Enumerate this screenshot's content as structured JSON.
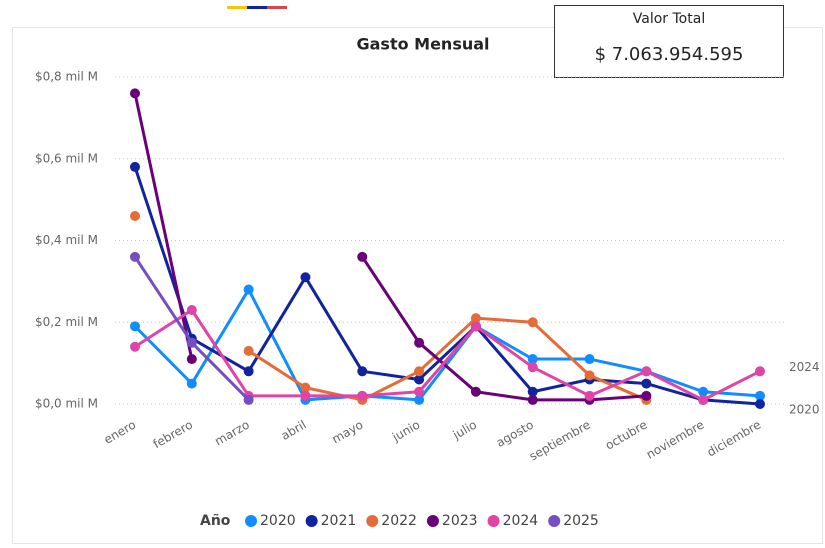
{
  "chart_data": {
    "type": "line",
    "title": "Gasto Mensual",
    "categories": [
      "enero",
      "febrero",
      "marzo",
      "abril",
      "mayo",
      "junio",
      "julio",
      "agosto",
      "septiembre",
      "octubre",
      "noviembre",
      "diciembre"
    ],
    "series": [
      {
        "name": "2020",
        "color": "#118DFF",
        "values": [
          0.19,
          0.05,
          0.28,
          0.01,
          0.02,
          0.01,
          0.19,
          0.11,
          0.11,
          0.08,
          0.03,
          0.02
        ]
      },
      {
        "name": "2021",
        "color": "#12239E",
        "values": [
          0.58,
          0.16,
          0.08,
          0.31,
          0.08,
          0.06,
          0.19,
          0.03,
          0.06,
          0.05,
          0.01,
          0.0
        ]
      },
      {
        "name": "2022",
        "color": "#E66C37",
        "values": [
          0.46,
          null,
          0.13,
          0.04,
          0.01,
          0.08,
          0.21,
          0.2,
          0.07,
          0.01,
          null,
          null
        ]
      },
      {
        "name": "2023",
        "color": "#6B007B",
        "values": [
          0.76,
          0.11,
          null,
          null,
          0.36,
          0.15,
          0.03,
          0.01,
          0.01,
          0.02,
          null,
          null
        ]
      },
      {
        "name": "2024",
        "color": "#E044A7",
        "values": [
          0.14,
          0.23,
          0.02,
          0.02,
          0.02,
          0.03,
          0.19,
          0.09,
          0.02,
          0.08,
          0.01,
          0.08
        ]
      },
      {
        "name": "2025",
        "color": "#744EC2",
        "values": [
          0.36,
          0.15,
          0.01,
          null,
          null,
          null,
          null,
          null,
          null,
          null,
          null,
          null
        ]
      }
    ],
    "ylim": [
      0,
      0.8
    ],
    "yticks": [
      {
        "value": 0,
        "label": "$0,0 mil M"
      },
      {
        "value": 0.2,
        "label": "$0,2 mil M"
      },
      {
        "value": 0.4,
        "label": "$0,4 mil M"
      },
      {
        "value": 0.6,
        "label": "$0,6 mil M"
      },
      {
        "value": 0.8,
        "label": "$0,8 mil M"
      }
    ],
    "grid": true,
    "legend_title": "Año",
    "legend": "bottom",
    "end_labels": [
      4,
      0
    ]
  },
  "card": {
    "label": "Valor Total",
    "value": "$ 7.063.954.595"
  }
}
